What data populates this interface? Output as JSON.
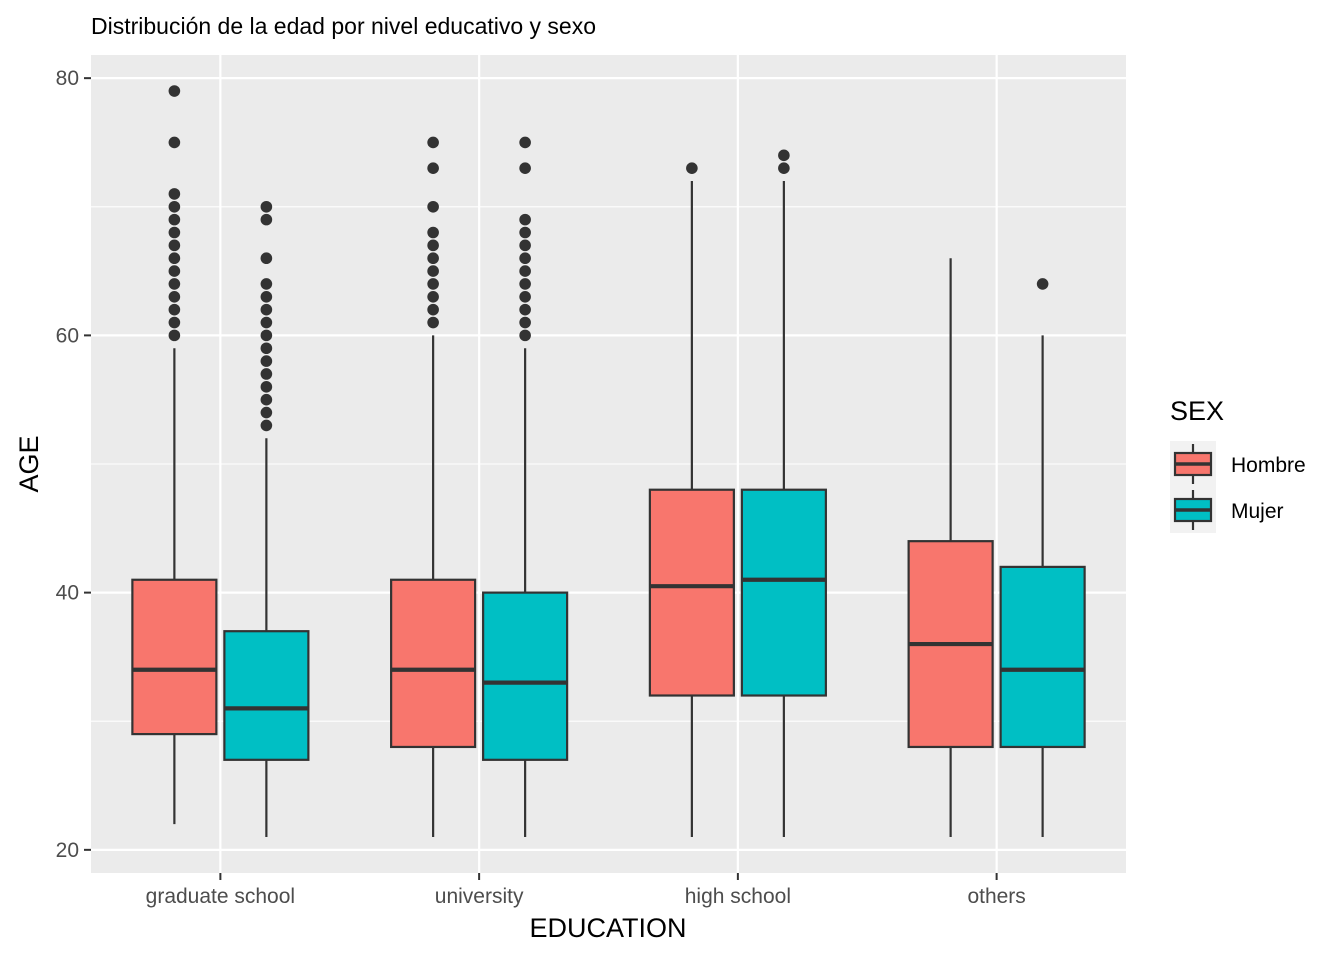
{
  "chart_data": {
    "type": "boxplot",
    "title": "Distribución de la edad por nivel educativo y sexo",
    "xlabel": "EDUCATION",
    "ylabel": "AGE",
    "ylim": [
      18.2,
      81.8
    ],
    "y_ticks": [
      20,
      40,
      60,
      80
    ],
    "categories": [
      "graduate school",
      "university",
      "high school",
      "others"
    ],
    "legend": {
      "title": "SEX",
      "position": "right"
    },
    "grid": true,
    "series": [
      {
        "name": "Hombre",
        "color": "#F8766D",
        "boxes": [
          {
            "whisker_low": 22,
            "q1": 29,
            "median": 34,
            "q3": 41,
            "whisker_high": 59,
            "outliers": [
              60,
              61,
              62,
              63,
              64,
              65,
              66,
              67,
              68,
              69,
              70,
              71,
              75,
              79
            ]
          },
          {
            "whisker_low": 21,
            "q1": 28,
            "median": 34,
            "q3": 41,
            "whisker_high": 60,
            "outliers": [
              61,
              62,
              63,
              64,
              65,
              66,
              67,
              68,
              70,
              73,
              75
            ]
          },
          {
            "whisker_low": 21,
            "q1": 32,
            "median": 40.5,
            "q3": 48,
            "whisker_high": 72,
            "outliers": [
              73
            ]
          },
          {
            "whisker_low": 21,
            "q1": 28,
            "median": 36,
            "q3": 44,
            "whisker_high": 66,
            "outliers": []
          }
        ]
      },
      {
        "name": "Mujer",
        "color": "#00BFC4",
        "boxes": [
          {
            "whisker_low": 21,
            "q1": 27,
            "median": 31,
            "q3": 37,
            "whisker_high": 52,
            "outliers": [
              53,
              54,
              55,
              56,
              57,
              58,
              59,
              60,
              61,
              62,
              63,
              64,
              66,
              69,
              70
            ]
          },
          {
            "whisker_low": 21,
            "q1": 27,
            "median": 33,
            "q3": 40,
            "whisker_high": 59,
            "outliers": [
              60,
              61,
              62,
              63,
              64,
              65,
              66,
              67,
              68,
              69,
              73,
              75
            ]
          },
          {
            "whisker_low": 21,
            "q1": 32,
            "median": 41,
            "q3": 48,
            "whisker_high": 72,
            "outliers": [
              73,
              74
            ]
          },
          {
            "whisker_low": 21,
            "q1": 28,
            "median": 34,
            "q3": 42,
            "whisker_high": 60,
            "outliers": [
              64
            ]
          }
        ]
      }
    ]
  }
}
